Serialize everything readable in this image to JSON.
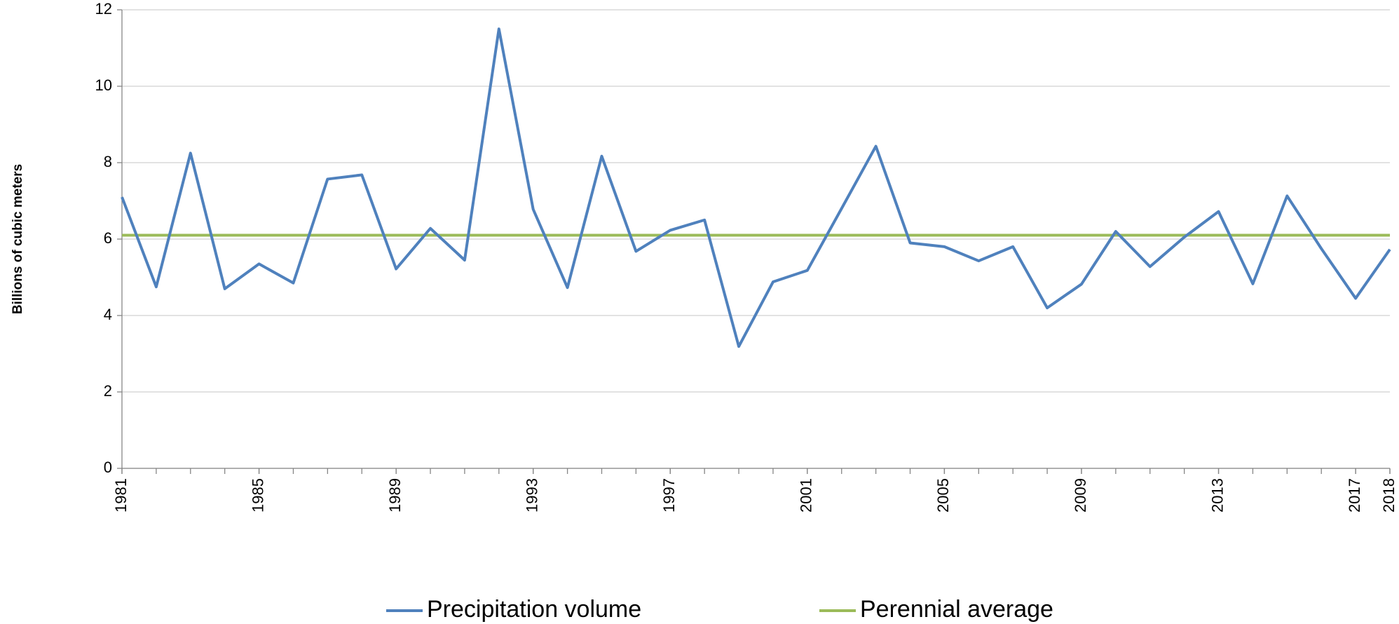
{
  "chart_data": {
    "type": "line",
    "ylabel": "Billions of cubic meters",
    "x": [
      1981,
      1982,
      1983,
      1984,
      1985,
      1986,
      1987,
      1988,
      1989,
      1990,
      1991,
      1992,
      1993,
      1994,
      1995,
      1996,
      1997,
      1998,
      1999,
      2000,
      2001,
      2002,
      2003,
      2004,
      2005,
      2006,
      2007,
      2008,
      2009,
      2010,
      2011,
      2012,
      2013,
      2014,
      2015,
      2016,
      2017,
      2018
    ],
    "series": [
      {
        "name": "Precipitation volume",
        "color": "#4f81bd",
        "values": [
          7.1,
          4.75,
          8.25,
          4.7,
          5.35,
          4.85,
          7.57,
          7.68,
          5.22,
          6.28,
          5.45,
          11.5,
          6.78,
          4.73,
          8.17,
          5.68,
          6.23,
          6.5,
          3.19,
          4.88,
          5.18,
          6.8,
          8.43,
          5.9,
          5.8,
          5.43,
          5.8,
          4.2,
          4.82,
          6.2,
          5.28,
          6.05,
          6.72,
          4.83,
          7.13,
          5.75,
          4.45,
          5.73
        ]
      },
      {
        "name": "Perennial average",
        "color": "#9bbb59",
        "values": [
          6.1,
          6.1,
          6.1,
          6.1,
          6.1,
          6.1,
          6.1,
          6.1,
          6.1,
          6.1,
          6.1,
          6.1,
          6.1,
          6.1,
          6.1,
          6.1,
          6.1,
          6.1,
          6.1,
          6.1,
          6.1,
          6.1,
          6.1,
          6.1,
          6.1,
          6.1,
          6.1,
          6.1,
          6.1,
          6.1,
          6.1,
          6.1,
          6.1,
          6.1,
          6.1,
          6.1,
          6.1,
          6.1
        ]
      }
    ],
    "xlim": [
      1981,
      2018
    ],
    "xticks": [
      1981,
      1985,
      1989,
      1993,
      1997,
      2001,
      2005,
      2009,
      2013,
      2017,
      2018
    ],
    "ylim": [
      0,
      12
    ],
    "yticks": [
      0,
      2,
      4,
      6,
      8,
      10,
      12
    ],
    "grid": true,
    "legend": "bottom"
  }
}
